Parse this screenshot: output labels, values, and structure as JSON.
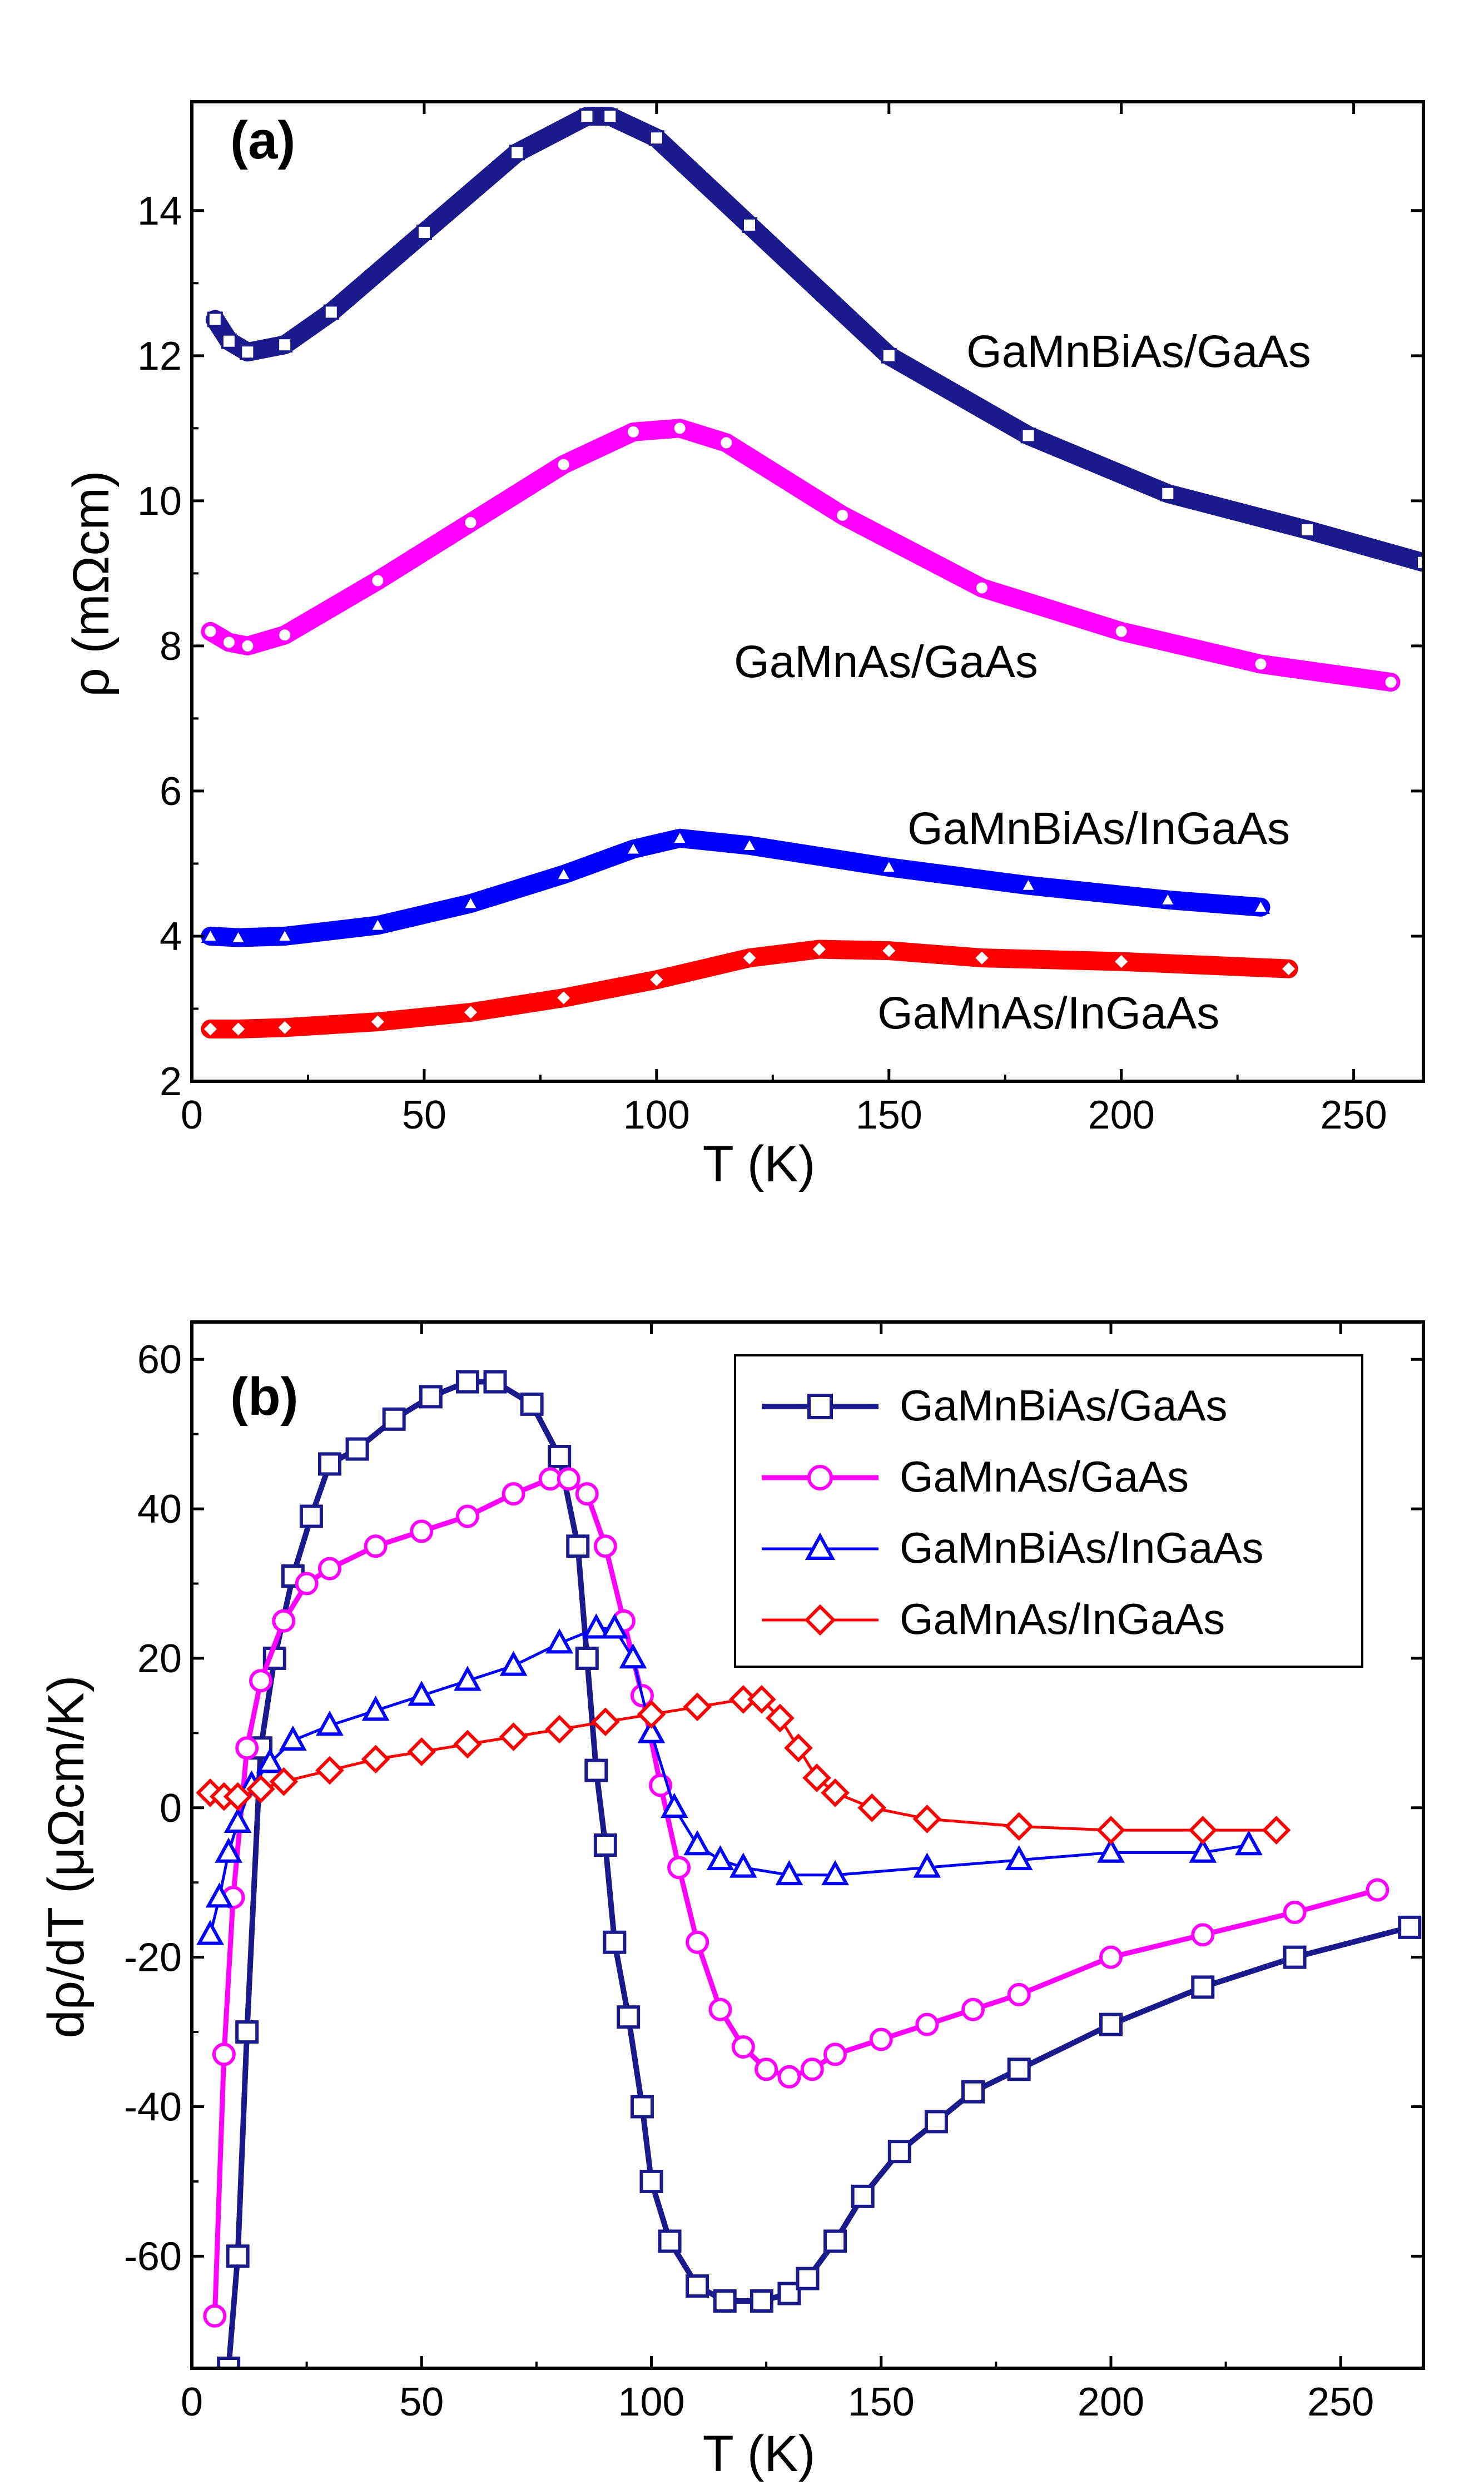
{
  "chart_data": [
    {
      "panel": "(a)",
      "type": "line",
      "xlabel": "T (K)",
      "ylabel": "ρ (mΩcm)",
      "xlim": [
        0,
        265
      ],
      "ylim": [
        2,
        15.5
      ],
      "xticks": [
        0,
        50,
        100,
        150,
        200,
        250
      ],
      "yticks": [
        2,
        4,
        6,
        8,
        10,
        12,
        14
      ],
      "series": [
        {
          "name": "GaMnBiAs/GaAs",
          "color": "#1a1a8c",
          "marker": "square",
          "label": "GaMnBiAs/GaAs",
          "x": [
            5,
            8,
            12,
            20,
            30,
            50,
            70,
            85,
            90,
            100,
            120,
            150,
            180,
            210,
            240,
            265
          ],
          "y": [
            12.5,
            12.2,
            12.05,
            12.15,
            12.6,
            13.7,
            14.8,
            15.3,
            15.3,
            15.0,
            13.8,
            12.0,
            10.9,
            10.1,
            9.6,
            9.15
          ]
        },
        {
          "name": "GaMnAs/GaAs",
          "color": "#ff00ff",
          "marker": "circle",
          "label": "GaMnAs/GaAs",
          "x": [
            4,
            8,
            12,
            20,
            40,
            60,
            80,
            95,
            105,
            115,
            140,
            170,
            200,
            230,
            258
          ],
          "y": [
            8.2,
            8.05,
            8.0,
            8.15,
            8.9,
            9.7,
            10.5,
            10.95,
            11.0,
            10.8,
            9.8,
            8.8,
            8.2,
            7.75,
            7.5
          ]
        },
        {
          "name": "GaMnBiAs/InGaAs",
          "color": "#0000ff",
          "marker": "triangle",
          "label": "GaMnBiAs/InGaAs",
          "x": [
            4,
            10,
            20,
            40,
            60,
            80,
            95,
            105,
            120,
            150,
            180,
            210,
            230
          ],
          "y": [
            4.0,
            3.98,
            4.0,
            4.15,
            4.45,
            4.85,
            5.2,
            5.35,
            5.25,
            4.95,
            4.7,
            4.5,
            4.4
          ]
        },
        {
          "name": "GaMnAs/InGaAs",
          "color": "#ff0000",
          "marker": "diamond",
          "label": "GaMnAs/InGaAs",
          "x": [
            4,
            10,
            20,
            40,
            60,
            80,
            100,
            120,
            135,
            150,
            170,
            200,
            236
          ],
          "y": [
            2.72,
            2.72,
            2.74,
            2.82,
            2.95,
            3.15,
            3.4,
            3.7,
            3.82,
            3.8,
            3.7,
            3.65,
            3.55
          ]
        }
      ]
    },
    {
      "panel": "(b)",
      "type": "line",
      "xlabel": "T (K)",
      "ylabel": "dρ/dT (μΩcm/K)",
      "xlim": [
        0,
        268
      ],
      "ylim": [
        -75,
        65
      ],
      "xticks": [
        0,
        50,
        100,
        150,
        200,
        250
      ],
      "yticks": [
        -60,
        -40,
        -20,
        0,
        20,
        40,
        60
      ],
      "legend_position": "top-right",
      "series": [
        {
          "name": "GaMnBiAs/GaAs",
          "color": "#1a1a8c",
          "marker": "square",
          "x": [
            8,
            10,
            12,
            15,
            18,
            22,
            26,
            30,
            36,
            44,
            52,
            60,
            66,
            74,
            80,
            84,
            86,
            88,
            90,
            92,
            95,
            98,
            100,
            104,
            110,
            116,
            124,
            130,
            134,
            140,
            146,
            154,
            162,
            170,
            180,
            200,
            220,
            240,
            265
          ],
          "y": [
            -75,
            -60,
            -30,
            8,
            20,
            31,
            39,
            46,
            48,
            52,
            55,
            57,
            57,
            54,
            47,
            35,
            20,
            5,
            -5,
            -18,
            -28,
            -40,
            -50,
            -58,
            -64,
            -66,
            -66,
            -65,
            -63,
            -58,
            -52,
            -46,
            -42,
            -38,
            -35,
            -29,
            -24,
            -20,
            -16
          ]
        },
        {
          "name": "GaMnAs/GaAs",
          "color": "#ff00ff",
          "marker": "circle",
          "x": [
            5,
            7,
            9,
            12,
            15,
            20,
            25,
            30,
            40,
            50,
            60,
            70,
            78,
            82,
            86,
            90,
            94,
            98,
            102,
            106,
            110,
            115,
            120,
            125,
            130,
            135,
            140,
            150,
            160,
            170,
            180,
            200,
            220,
            240,
            258
          ],
          "y": [
            -68,
            -33,
            -12,
            8,
            17,
            25,
            30,
            32,
            35,
            37,
            39,
            42,
            44,
            44,
            42,
            35,
            25,
            15,
            3,
            -8,
            -18,
            -27,
            -32,
            -35,
            -36,
            -35,
            -33,
            -31,
            -29,
            -27,
            -25,
            -20,
            -17,
            -14,
            -11
          ]
        },
        {
          "name": "GaMnBiAs/InGaAs",
          "color": "#0000ff",
          "marker": "triangle",
          "x": [
            4,
            6,
            8,
            10,
            13,
            17,
            22,
            30,
            40,
            50,
            60,
            70,
            80,
            88,
            92,
            96,
            100,
            105,
            110,
            115,
            120,
            130,
            140,
            160,
            180,
            200,
            220,
            230
          ],
          "y": [
            -17,
            -12,
            -6,
            -2,
            3,
            6,
            9,
            11,
            13,
            15,
            17,
            19,
            22,
            24,
            24,
            20,
            10,
            0,
            -5,
            -7,
            -8,
            -9,
            -9,
            -8,
            -7,
            -6,
            -6,
            -5
          ]
        },
        {
          "name": "GaMnAs/InGaAs",
          "color": "#ff0000",
          "marker": "diamond",
          "x": [
            4,
            7,
            10,
            15,
            20,
            30,
            40,
            50,
            60,
            70,
            80,
            90,
            100,
            110,
            120,
            124,
            128,
            132,
            136,
            140,
            148,
            160,
            180,
            200,
            220,
            236
          ],
          "y": [
            2,
            1.5,
            1.5,
            2.5,
            3.5,
            5,
            6.5,
            7.5,
            8.5,
            9.5,
            10.5,
            11.5,
            12.5,
            13.5,
            14.5,
            14.5,
            12,
            8,
            4,
            2,
            0,
            -1.5,
            -2.5,
            -3,
            -3,
            -3
          ]
        }
      ]
    }
  ]
}
